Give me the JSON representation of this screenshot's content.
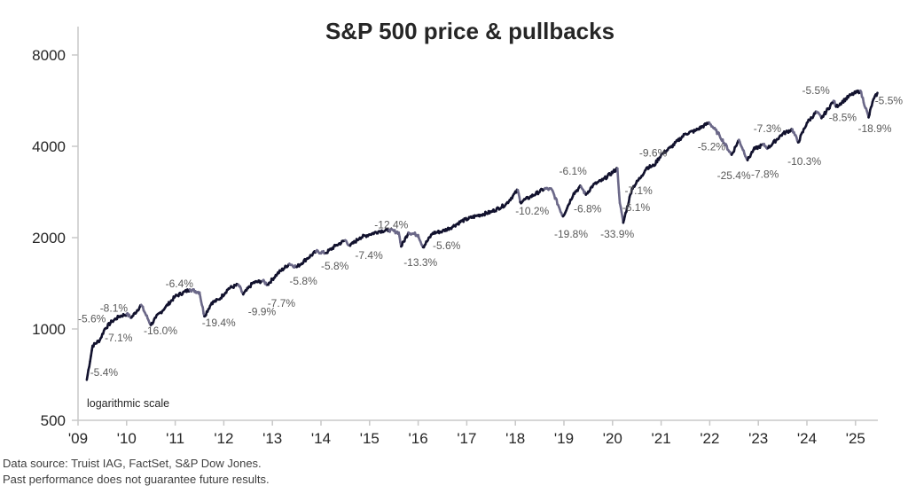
{
  "chart_data": {
    "type": "line",
    "title": "S&P 500 price & pullbacks",
    "xlabel": "",
    "ylabel": "",
    "y_scale": "log",
    "ylim": [
      500,
      9000
    ],
    "yticks": [
      500,
      1000,
      2000,
      4000,
      8000
    ],
    "ytick_labels": [
      "500",
      "1000",
      "2000",
      "4000",
      "8000"
    ],
    "xlim": [
      2009.0,
      2025.5
    ],
    "xticks": [
      2009,
      2010,
      2011,
      2012,
      2013,
      2014,
      2015,
      2016,
      2017,
      2018,
      2019,
      2020,
      2021,
      2022,
      2023,
      2024,
      2025
    ],
    "xtick_labels": [
      "'09",
      "'10",
      "'11",
      "'12",
      "'13",
      "'14",
      "'15",
      "'16",
      "'17",
      "'18",
      "'19",
      "'20",
      "'21",
      "'22",
      "'23",
      "'24",
      "'25"
    ],
    "grid": false,
    "annotation": "logarithmic scale",
    "series": [
      {
        "name": "S&P 500 price",
        "color": "#12122e",
        "pullback_color": "#6b6888",
        "x": [
          2009.18,
          2009.3,
          2009.45,
          2009.55,
          2009.7,
          2009.85,
          2010.0,
          2010.1,
          2010.3,
          2010.5,
          2010.6,
          2010.8,
          2011.0,
          2011.3,
          2011.5,
          2011.6,
          2011.75,
          2011.9,
          2012.1,
          2012.3,
          2012.4,
          2012.6,
          2012.8,
          2012.9,
          2013.1,
          2013.35,
          2013.5,
          2013.7,
          2013.9,
          2014.1,
          2014.3,
          2014.5,
          2014.6,
          2014.8,
          2015.0,
          2015.2,
          2015.4,
          2015.6,
          2015.65,
          2015.8,
          2016.0,
          2016.1,
          2016.3,
          2016.5,
          2016.7,
          2016.9,
          2017.2,
          2017.5,
          2017.8,
          2018.05,
          2018.1,
          2018.3,
          2018.6,
          2018.75,
          2018.98,
          2019.2,
          2019.35,
          2019.45,
          2019.6,
          2019.8,
          2020.1,
          2020.15,
          2020.22,
          2020.4,
          2020.6,
          2020.7,
          2020.85,
          2021.0,
          2021.2,
          2021.5,
          2021.7,
          2021.99,
          2022.2,
          2022.45,
          2022.6,
          2022.78,
          2022.9,
          2023.1,
          2023.2,
          2023.5,
          2023.7,
          2023.82,
          2024.0,
          2024.2,
          2024.3,
          2024.55,
          2024.6,
          2024.9,
          2025.1,
          2025.27,
          2025.35,
          2025.45
        ],
        "y": [
          680,
          880,
          920,
          1000,
          1060,
          1100,
          1120,
          1090,
          1200,
          1030,
          1090,
          1180,
          1280,
          1350,
          1320,
          1100,
          1220,
          1250,
          1360,
          1400,
          1300,
          1420,
          1440,
          1400,
          1520,
          1640,
          1600,
          1700,
          1800,
          1780,
          1880,
          1960,
          1880,
          2000,
          2050,
          2100,
          2120,
          2080,
          1870,
          2080,
          2040,
          1860,
          2070,
          2100,
          2170,
          2270,
          2360,
          2430,
          2570,
          2870,
          2620,
          2720,
          2900,
          2880,
          2350,
          2800,
          2950,
          2770,
          2980,
          3100,
          3380,
          2600,
          2240,
          2900,
          3200,
          3400,
          3450,
          3750,
          3970,
          4400,
          4500,
          4790,
          4350,
          3750,
          4200,
          3600,
          3900,
          4050,
          3950,
          4400,
          4550,
          4120,
          4780,
          5200,
          4950,
          5650,
          5400,
          5900,
          6100,
          4980,
          5600,
          6000
        ],
        "values_note": "approximate path read from chart"
      }
    ],
    "pullbacks": [
      {
        "label": "-5.4%",
        "x": 2009.25,
        "y": 700
      },
      {
        "label": "-5.6%",
        "x": 2009.0,
        "y": 1050
      },
      {
        "label": "-7.1%",
        "x": 2009.55,
        "y": 910
      },
      {
        "label": "-8.1%",
        "x": 2009.45,
        "y": 1140
      },
      {
        "label": "-16.0%",
        "x": 2010.35,
        "y": 960
      },
      {
        "label": "-6.4%",
        "x": 2010.8,
        "y": 1370
      },
      {
        "label": "-19.4%",
        "x": 2011.55,
        "y": 1020
      },
      {
        "label": "-9.9%",
        "x": 2012.5,
        "y": 1110
      },
      {
        "label": "-7.7%",
        "x": 2012.9,
        "y": 1185
      },
      {
        "label": "-5.8%",
        "x": 2013.35,
        "y": 1400
      },
      {
        "label": "-5.8%",
        "x": 2014.0,
        "y": 1570
      },
      {
        "label": "-7.4%",
        "x": 2014.7,
        "y": 1700
      },
      {
        "label": "-12.4%",
        "x": 2015.1,
        "y": 2150
      },
      {
        "label": "-13.3%",
        "x": 2015.7,
        "y": 1610
      },
      {
        "label": "-5.6%",
        "x": 2016.3,
        "y": 1830
      },
      {
        "label": "-10.2%",
        "x": 2018.0,
        "y": 2380
      },
      {
        "label": "-19.8%",
        "x": 2018.8,
        "y": 2000
      },
      {
        "label": "-6.8%",
        "x": 2019.2,
        "y": 2420
      },
      {
        "label": "-6.1%",
        "x": 2018.9,
        "y": 3220
      },
      {
        "label": "-33.9%",
        "x": 2019.75,
        "y": 2000
      },
      {
        "label": "-6.1%",
        "x": 2020.2,
        "y": 2450
      },
      {
        "label": "-7.1%",
        "x": 2020.25,
        "y": 2780
      },
      {
        "label": "-9.6%",
        "x": 2020.55,
        "y": 3700
      },
      {
        "label": "-5.2%",
        "x": 2021.75,
        "y": 3880
      },
      {
        "label": "-25.4%",
        "x": 2022.15,
        "y": 3120
      },
      {
        "label": "-7.8%",
        "x": 2022.85,
        "y": 3150
      },
      {
        "label": "-7.3%",
        "x": 2022.9,
        "y": 4450
      },
      {
        "label": "-10.3%",
        "x": 2023.6,
        "y": 3470
      },
      {
        "label": "-5.5%",
        "x": 2023.9,
        "y": 5950
      },
      {
        "label": "-8.5%",
        "x": 2024.45,
        "y": 4850
      },
      {
        "label": "-18.9%",
        "x": 2025.05,
        "y": 4450
      },
      {
        "label": "-5.5%",
        "x": 2025.4,
        "y": 5500
      }
    ]
  },
  "footer": {
    "line1": "Data source: Truist IAG, FactSet, S&P Dow Jones.",
    "line2": "Past performance does not guarantee future results."
  }
}
